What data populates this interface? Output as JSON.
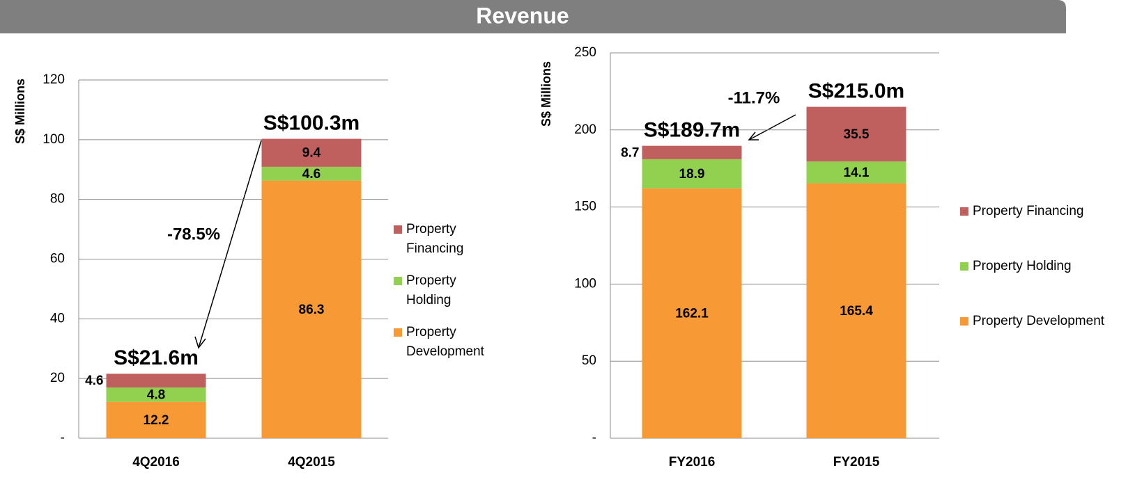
{
  "header": {
    "title": "Revenue"
  },
  "chart_data": [
    {
      "type": "bar",
      "stacked": true,
      "ylabel": "S$ Millions",
      "categories": [
        "4Q2016",
        "4Q2015"
      ],
      "series": [
        {
          "name": "Property Development",
          "color": "#f79a36",
          "values": [
            12.2,
            86.3
          ]
        },
        {
          "name": "Property Holding",
          "color": "#92d050",
          "values": [
            4.8,
            4.6
          ]
        },
        {
          "name": "Property Financing",
          "color": "#c0605e",
          "values": [
            4.6,
            9.4
          ]
        }
      ],
      "total_labels": [
        "S$21.6m",
        "S$100.3m"
      ],
      "change_label": "-78.5%",
      "ylim": [
        0,
        120
      ],
      "yticks": [
        {
          "value": 0,
          "label": "-"
        },
        20,
        40,
        60,
        80,
        100,
        120
      ],
      "grid": true
    },
    {
      "type": "bar",
      "stacked": true,
      "ylabel": "S$ Millions",
      "categories": [
        "FY2016",
        "FY2015"
      ],
      "series": [
        {
          "name": "Property Development",
          "color": "#f79a36",
          "values": [
            162.1,
            165.4
          ]
        },
        {
          "name": "Property Holding",
          "color": "#92d050",
          "values": [
            18.9,
            14.1
          ]
        },
        {
          "name": "Property Financing",
          "color": "#c0605e",
          "values": [
            8.7,
            35.5
          ]
        }
      ],
      "total_labels": [
        "S$189.7m",
        "S$215.0m"
      ],
      "change_label": "-11.7%",
      "ylim": [
        0,
        250
      ],
      "yticks": [
        {
          "value": 0,
          "label": "-"
        },
        50,
        100,
        150,
        200,
        250
      ],
      "grid": true
    }
  ]
}
